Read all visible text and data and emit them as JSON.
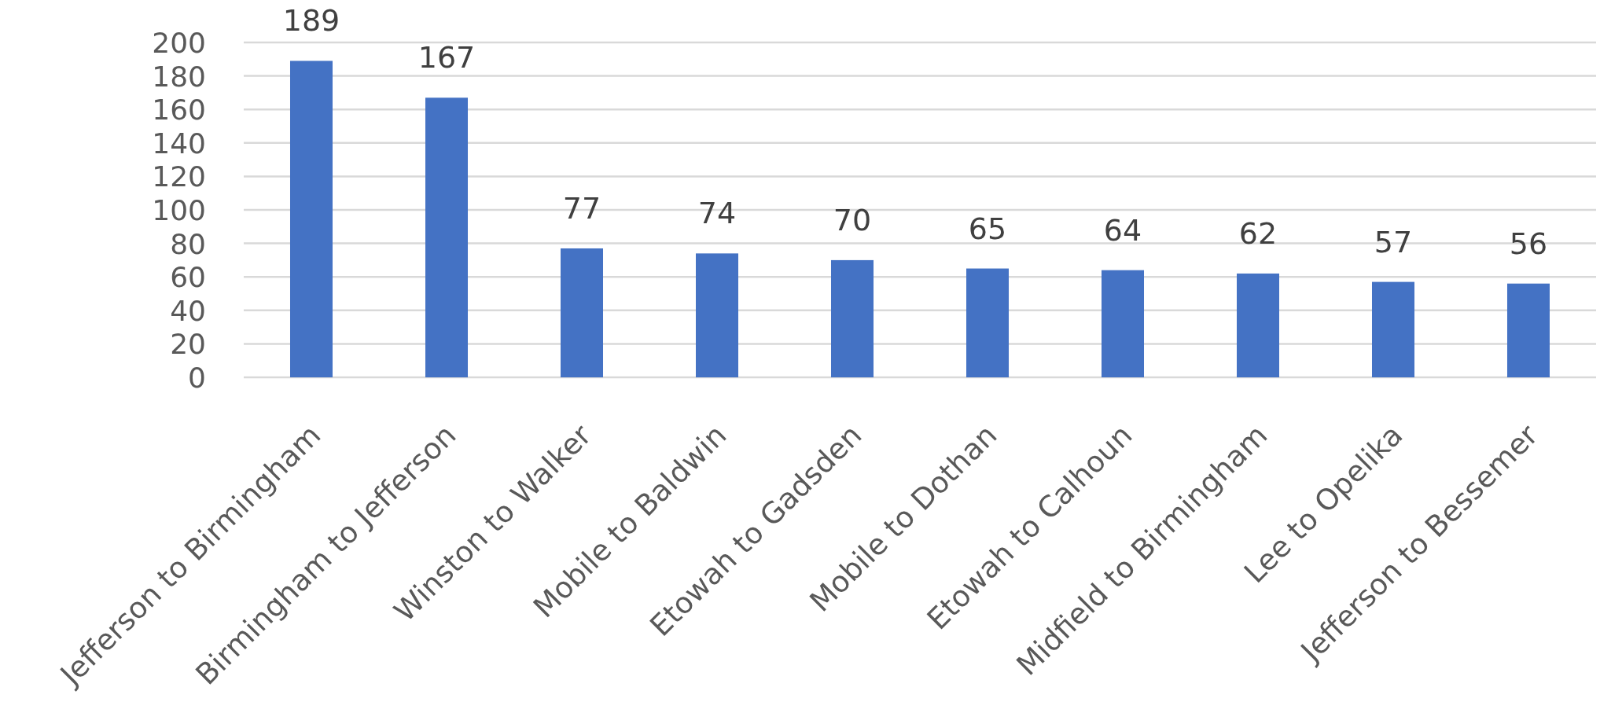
{
  "chart_data": {
    "type": "bar",
    "categories": [
      "Jefferson to Birmingham",
      "Birmingham to Jefferson",
      "Winston to Walker",
      "Mobile to Baldwin",
      "Etowah to Gadsden",
      "Mobile to Dothan",
      "Etowah to Calhoun",
      "Midfield to Birmingham",
      "Lee to Opelika",
      "Jefferson to Bessemer"
    ],
    "values": [
      189,
      167,
      77,
      74,
      70,
      65,
      64,
      62,
      57,
      56
    ],
    "color": "#4472c4",
    "ylim": [
      0,
      200
    ],
    "yticks": [
      0,
      20,
      40,
      60,
      80,
      100,
      120,
      140,
      160,
      180,
      200
    ],
    "grid": "y",
    "data_labels": true
  }
}
